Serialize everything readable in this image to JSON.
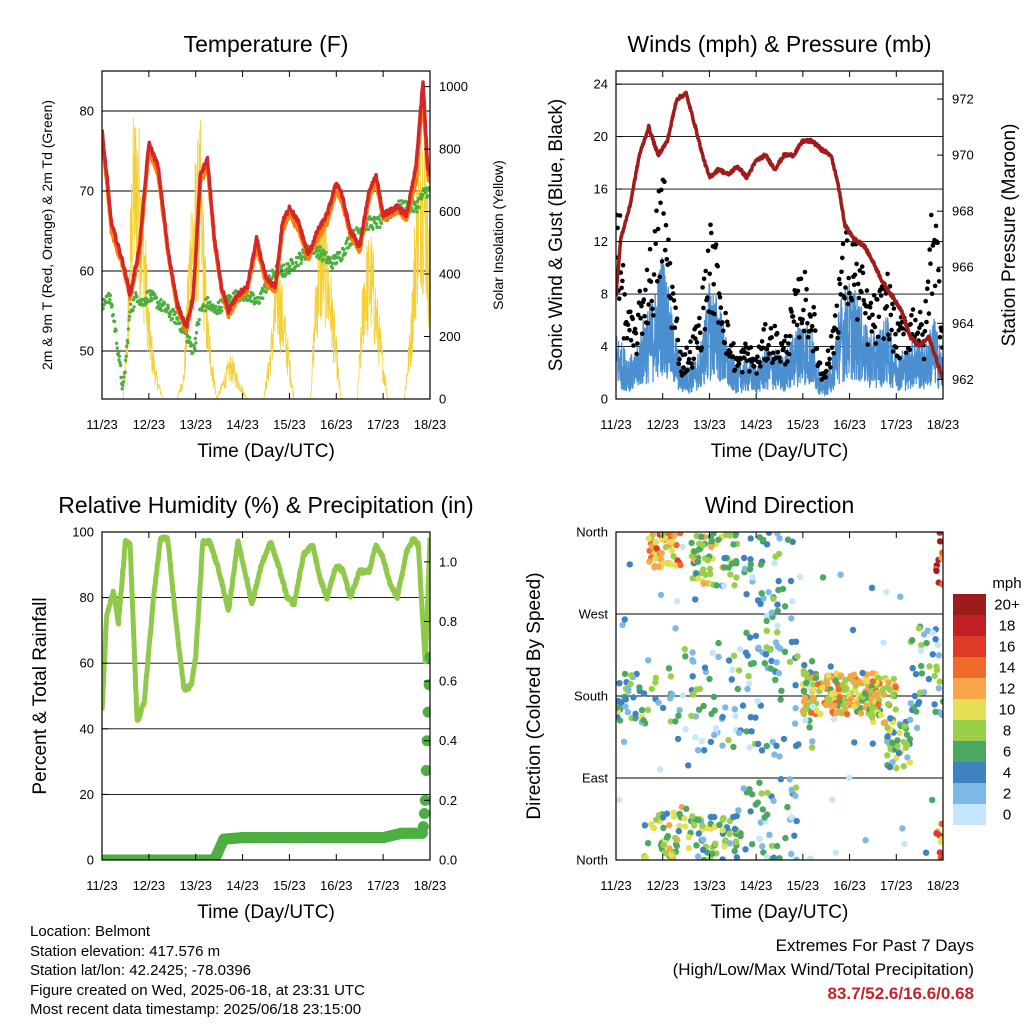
{
  "chart_data": [
    {
      "type": "line",
      "title": "Temperature (F)",
      "xlabel": "Time (Day/UTC)",
      "ylabel": "2m & 9m T (Red, Orange) & 2m Td (Green)",
      "y2label": "Solar Insolation (Yellow)",
      "x_ticks": [
        "11/23",
        "12/23",
        "13/23",
        "14/23",
        "15/23",
        "16/23",
        "17/23",
        "18/23"
      ],
      "ylim": [
        44,
        85
      ],
      "y_ticks": [
        50,
        60,
        70,
        80
      ],
      "y2lim": [
        0,
        1050
      ],
      "y2_ticks": [
        0,
        200,
        400,
        600,
        800,
        1000
      ],
      "grid": true,
      "series": [
        {
          "name": "2m T",
          "color": "#d62728",
          "axis": "left",
          "x": [
            11.0,
            11.1,
            11.2,
            11.3,
            11.45,
            11.6,
            11.8,
            12.0,
            12.2,
            12.4,
            12.6,
            12.8,
            12.95,
            13.1,
            13.25,
            13.4,
            13.55,
            13.7,
            13.9,
            14.1,
            14.3,
            14.5,
            14.7,
            14.85,
            15.0,
            15.2,
            15.4,
            15.6,
            15.8,
            16.0,
            16.1,
            16.3,
            16.5,
            16.7,
            16.85,
            17.0,
            17.3,
            17.5,
            17.7,
            17.85,
            17.95,
            18.0
          ],
          "values": [
            77.5,
            72,
            66,
            64,
            61,
            57,
            63,
            76,
            73,
            63,
            56,
            53,
            57,
            72,
            74,
            64,
            58,
            55,
            57,
            58,
            64,
            59,
            58,
            66,
            68,
            66,
            62,
            65,
            67,
            71,
            70,
            65,
            63,
            70,
            72,
            67,
            68,
            67,
            73,
            83.7,
            73,
            72
          ]
        },
        {
          "name": "9m T",
          "color": "#ff7f0e",
          "axis": "left",
          "x": [
            11.0,
            11.1,
            11.2,
            11.3,
            11.45,
            11.6,
            11.8,
            12.0,
            12.2,
            12.4,
            12.6,
            12.8,
            12.95,
            13.1,
            13.25,
            13.4,
            13.55,
            13.7,
            13.9,
            14.1,
            14.3,
            14.5,
            14.7,
            14.85,
            15.0,
            15.2,
            15.4,
            15.6,
            15.8,
            16.0,
            16.1,
            16.3,
            16.5,
            16.7,
            16.85,
            17.0,
            17.3,
            17.5,
            17.7,
            17.85,
            17.95,
            18.0
          ],
          "values": [
            76.5,
            71,
            65,
            63,
            60.5,
            56.5,
            62,
            75,
            72,
            62.5,
            55.5,
            52.6,
            56.5,
            71,
            73,
            63.5,
            57.5,
            54.5,
            56.5,
            57.5,
            63,
            58.5,
            57.5,
            65,
            67,
            65,
            61.5,
            64,
            66,
            70,
            69,
            64.5,
            62.5,
            69,
            71,
            66.5,
            67.5,
            66.5,
            71,
            82,
            72,
            71
          ]
        },
        {
          "name": "2m Td",
          "color": "#4caf3f",
          "axis": "left",
          "x": [
            11.0,
            11.1,
            11.2,
            11.3,
            11.45,
            11.6,
            11.75,
            11.85,
            12.0,
            12.2,
            12.4,
            12.6,
            12.8,
            12.95,
            13.1,
            13.25,
            13.4,
            13.6,
            13.9,
            14.1,
            14.3,
            14.5,
            14.7,
            14.9,
            15.1,
            15.3,
            15.5,
            15.7,
            15.9,
            16.1,
            16.3,
            16.5,
            16.7,
            16.9,
            17.1,
            17.3,
            17.5,
            17.7,
            17.9,
            18.0
          ],
          "values": [
            55,
            57,
            56,
            52,
            45,
            55,
            57,
            56,
            57,
            56,
            55,
            54,
            52,
            50,
            55,
            56,
            55,
            56,
            57,
            57,
            56,
            58,
            60,
            60,
            61,
            62,
            63,
            62,
            61,
            62,
            64,
            65,
            66,
            66,
            67,
            68,
            68,
            68,
            70,
            70
          ]
        },
        {
          "name": "Solar Insolation",
          "color": "#f5d033",
          "axis": "right",
          "x": [
            11.0,
            11.25,
            11.45,
            11.55,
            11.65,
            11.75,
            11.9,
            12.0,
            12.15,
            12.3,
            12.45,
            12.6,
            12.75,
            12.9,
            13.1,
            13.25,
            13.45,
            13.6,
            13.75,
            13.9,
            14.1,
            14.25,
            14.45,
            14.6,
            14.75,
            14.9,
            15.1,
            15.25,
            15.45,
            15.6,
            15.75,
            15.9,
            16.1,
            16.25,
            16.45,
            16.6,
            16.75,
            16.9,
            17.1,
            17.25,
            17.45,
            17.6,
            17.7,
            17.8,
            17.9,
            18.0
          ],
          "values": [
            0,
            0,
            0,
            300,
            900,
            1000,
            650,
            300,
            100,
            0,
            0,
            0,
            100,
            700,
            900,
            300,
            0,
            80,
            150,
            80,
            0,
            0,
            0,
            200,
            500,
            300,
            0,
            0,
            0,
            550,
            650,
            400,
            0,
            0,
            0,
            500,
            550,
            300,
            0,
            0,
            0,
            300,
            700,
            1000,
            900,
            500
          ]
        }
      ]
    },
    {
      "type": "scatter",
      "title": "Winds (mph) & Pressure (mb)",
      "xlabel": "Time (Day/UTC)",
      "ylabel": "Sonic Wind & Gust (Blue, Black)",
      "y2label": "Station Pressure (Maroon)",
      "x_ticks": [
        "11/23",
        "12/23",
        "13/23",
        "14/23",
        "15/23",
        "16/23",
        "17/23",
        "18/23"
      ],
      "ylim": [
        0,
        25
      ],
      "y_ticks": [
        0,
        4,
        8,
        12,
        16,
        20,
        24
      ],
      "y2lim": [
        961.3,
        973
      ],
      "y2_ticks": [
        962,
        964,
        966,
        968,
        970,
        972
      ],
      "grid": true,
      "series": [
        {
          "name": "Sonic Wind",
          "color": "#4a8fd0",
          "axis": "left",
          "x": [
            11.0,
            11.2,
            11.4,
            11.6,
            11.8,
            12.0,
            12.2,
            12.4,
            12.6,
            12.8,
            13.0,
            13.2,
            13.4,
            13.6,
            13.8,
            14.0,
            14.2,
            14.4,
            14.6,
            14.8,
            15.0,
            15.2,
            15.4,
            15.6,
            15.8,
            16.0,
            16.2,
            16.4,
            16.6,
            16.8,
            17.0,
            17.2,
            17.4,
            17.6,
            17.8,
            18.0
          ],
          "values": [
            4,
            3,
            2.5,
            5,
            6,
            9,
            5,
            2,
            2,
            3,
            7,
            6,
            3,
            2,
            2.5,
            2,
            3,
            3,
            2.5,
            4,
            5,
            4,
            1,
            2,
            6,
            7,
            6,
            4,
            4,
            5,
            3,
            3,
            4,
            3,
            5,
            2.5
          ]
        },
        {
          "name": "Gust",
          "color": "#000000",
          "axis": "left",
          "x": [
            11.0,
            11.2,
            11.4,
            11.6,
            11.8,
            12.0,
            12.2,
            12.4,
            12.6,
            12.8,
            13.0,
            13.2,
            13.4,
            13.6,
            13.8,
            14.0,
            14.2,
            14.4,
            14.6,
            14.8,
            15.0,
            15.2,
            15.4,
            15.6,
            15.8,
            16.0,
            16.2,
            16.4,
            16.6,
            16.8,
            17.0,
            17.2,
            17.4,
            17.6,
            17.8,
            18.0
          ],
          "values": [
            16,
            7,
            5,
            9,
            11,
            16.6,
            9,
            3,
            4,
            6,
            12,
            10,
            5,
            3,
            4,
            3,
            5,
            5,
            4,
            7,
            9,
            7,
            2,
            4,
            10,
            12,
            10,
            7,
            7,
            9,
            5,
            6,
            7,
            5,
            16,
            5
          ]
        },
        {
          "name": "Station Pressure",
          "color": "#a01c1c",
          "axis": "right",
          "x": [
            11.0,
            11.1,
            11.3,
            11.5,
            11.7,
            11.9,
            12.1,
            12.3,
            12.5,
            12.7,
            12.85,
            13.0,
            13.2,
            13.4,
            13.6,
            13.8,
            14.0,
            14.2,
            14.4,
            14.6,
            14.8,
            15.0,
            15.2,
            15.4,
            15.6,
            15.75,
            15.9,
            16.1,
            16.3,
            16.5,
            16.7,
            16.9,
            17.1,
            17.3,
            17.5,
            17.7,
            17.9,
            18.0
          ],
          "values": [
            965,
            967,
            968.2,
            970,
            971,
            970,
            970.5,
            972,
            972.2,
            971,
            970,
            969.2,
            969.5,
            969.3,
            969.6,
            969.2,
            969.8,
            970,
            969.5,
            970,
            970,
            970.5,
            970.5,
            970.2,
            970,
            969,
            967.5,
            967,
            966.8,
            966.2,
            965.5,
            965,
            964.5,
            963.5,
            963.2,
            963.5,
            962.5,
            962
          ]
        }
      ]
    },
    {
      "type": "line",
      "title": "Relative Humidity (%) & Precipitation (in)",
      "xlabel": "Time (Day/UTC)",
      "ylabel": "Percent & Total Rainfall",
      "x_ticks": [
        "11/23",
        "12/23",
        "13/23",
        "14/23",
        "15/23",
        "16/23",
        "17/23",
        "18/23"
      ],
      "ylim": [
        0,
        100
      ],
      "y_ticks": [
        0,
        20,
        40,
        60,
        80,
        100
      ],
      "y2lim": [
        0,
        1.1
      ],
      "y2_ticks": [
        "0.0",
        "0.2",
        "0.4",
        "0.6",
        "0.8",
        "1.0"
      ],
      "grid": true,
      "series": [
        {
          "name": "Relative Humidity",
          "color": "#8fc94a",
          "axis": "left",
          "x": [
            11.0,
            11.1,
            11.25,
            11.35,
            11.5,
            11.6,
            11.75,
            11.9,
            12.1,
            12.25,
            12.4,
            12.6,
            12.75,
            12.9,
            13.0,
            13.15,
            13.3,
            13.5,
            13.7,
            13.9,
            14.05,
            14.2,
            14.4,
            14.6,
            14.8,
            14.95,
            15.1,
            15.3,
            15.5,
            15.65,
            15.8,
            16.0,
            16.15,
            16.3,
            16.5,
            16.7,
            16.85,
            17.0,
            17.15,
            17.3,
            17.5,
            17.65,
            17.75,
            17.9,
            18.0
          ],
          "values": [
            45,
            75,
            82,
            72,
            97,
            96,
            42,
            48,
            80,
            98,
            98,
            70,
            52,
            53,
            62,
            97,
            97,
            88,
            76,
            97,
            88,
            78,
            90,
            97,
            88,
            80,
            78,
            93,
            96,
            86,
            80,
            90,
            88,
            80,
            88,
            88,
            96,
            92,
            84,
            80,
            94,
            98,
            96,
            60,
            98
          ]
        },
        {
          "name": "Total Precipitation",
          "color": "#4caf3f",
          "axis": "right",
          "x": [
            11.0,
            12.0,
            13.0,
            13.4,
            13.6,
            14.0,
            15.0,
            16.0,
            17.0,
            17.4,
            17.85,
            17.9,
            17.95,
            18.0
          ],
          "values": [
            0,
            0,
            0,
            0,
            0.07,
            0.075,
            0.075,
            0.075,
            0.075,
            0.09,
            0.09,
            0.2,
            0.45,
            0.68
          ]
        }
      ]
    },
    {
      "type": "scatter",
      "title": "Wind Direction",
      "xlabel": "Time (Day/UTC)",
      "ylabel": "Direction (Colored By Speed)",
      "x_ticks": [
        "11/23",
        "12/23",
        "13/23",
        "14/23",
        "15/23",
        "16/23",
        "17/23",
        "18/23"
      ],
      "ylim": [
        0,
        360
      ],
      "y_ticks": [
        "North",
        "East",
        "South",
        "West",
        "North"
      ],
      "legend_title": "mph",
      "legend": [
        {
          "label": "20+",
          "color": "#9e1b1b"
        },
        {
          "label": "18",
          "color": "#bf2026"
        },
        {
          "label": "16",
          "color": "#de3a28"
        },
        {
          "label": "14",
          "color": "#f06a2c"
        },
        {
          "label": "12",
          "color": "#f9a64a"
        },
        {
          "label": "10",
          "color": "#e3e054"
        },
        {
          "label": "8",
          "color": "#9bcf49"
        },
        {
          "label": "6",
          "color": "#4ba862"
        },
        {
          "label": "4",
          "color": "#3e82c0"
        },
        {
          "label": "2",
          "color": "#7db8e6"
        },
        {
          "label": "0",
          "color": "#c3e6fa"
        }
      ],
      "legend_placement": "right",
      "speed_colors": [
        "#c3e6fa",
        "#7db8e6",
        "#3e82c0",
        "#4ba862",
        "#9bcf49",
        "#e3e054",
        "#f9a64a",
        "#f06a2c",
        "#de3a28",
        "#bf2026",
        "#9e1b1b"
      ]
    }
  ],
  "footer": {
    "location": "Location: Belmont",
    "elevation": "Station elevation: 417.576 m",
    "latlon": "Station lat/lon: 42.2425; -78.0396",
    "created": "Figure created on Wed, 2025-06-18, at 23:31 UTC",
    "recent": "Most recent data timestamp: 2025/06/18 23:15:00",
    "extremes_title": "Extremes For Past 7 Days",
    "extremes_subtitle": "(High/Low/Max Wind/Total Precipitation)",
    "extremes_values": "83.7/52.6/16.6/0.68"
  }
}
